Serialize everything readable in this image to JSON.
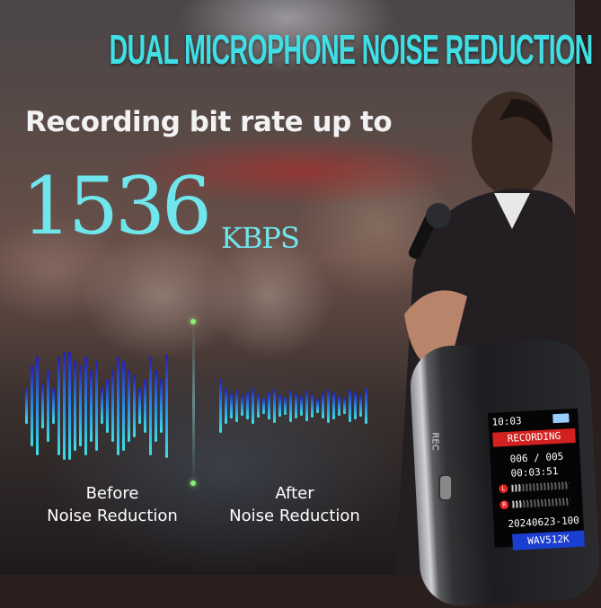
{
  "headline": "DUAL MICROPHONE NOISE REDUCTION",
  "subheadline": "Recording bit rate up to",
  "bitrate": {
    "value": "1536",
    "unit": "KBPS"
  },
  "comparison": {
    "before": {
      "line1": "Before",
      "line2": "Noise Reduction"
    },
    "after": {
      "line1": "After",
      "line2": "Noise Reduction"
    }
  },
  "device": {
    "side_label": "REC",
    "screen": {
      "time": "10:03",
      "battery_icon": "battery-icon",
      "status": "RECORDING",
      "file_index": "006 / 005",
      "elapsed": "00:03:51",
      "left_channel": "L",
      "right_channel": "R",
      "filename": "20240623-100",
      "format": "WAV512K"
    }
  },
  "colors": {
    "accent": "#3ee0e6",
    "status_red": "#d32020",
    "format_blue": "#1a3fd0"
  }
}
